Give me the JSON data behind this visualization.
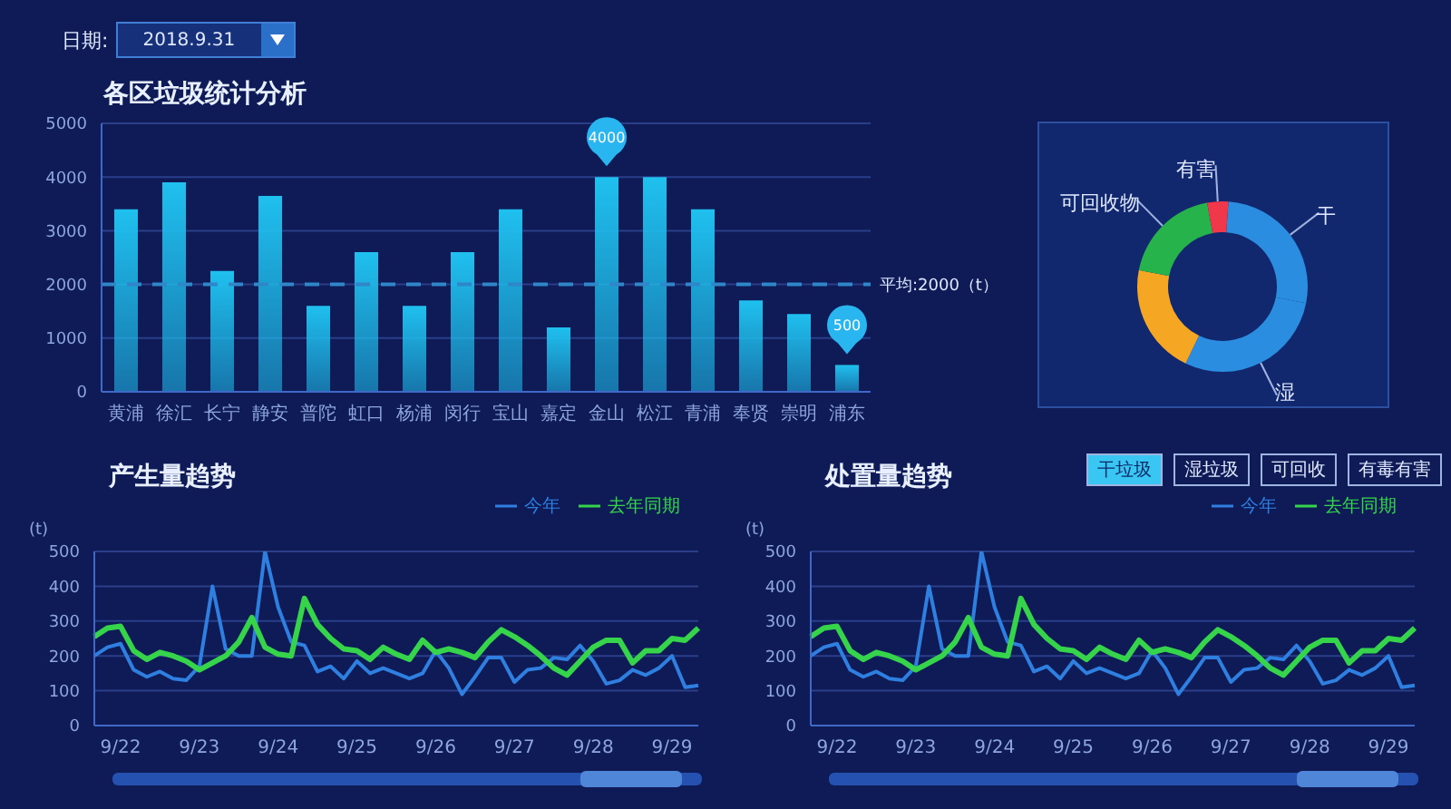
{
  "chart_data": [
    {
      "type": "bar",
      "title": "各区垃圾统计分析",
      "annotations": [
        "日期:",
        "2018.9.31"
      ],
      "categories": [
        "黄浦",
        "徐汇",
        "长宁",
        "静安",
        "普陀",
        "虹口",
        "杨浦",
        "闵行",
        "宝山",
        "嘉定",
        "金山",
        "松江",
        "青浦",
        "奉贤",
        "崇明",
        "浦东"
      ],
      "values": [
        3400,
        3900,
        2250,
        3650,
        1600,
        2600,
        1600,
        2600,
        3400,
        1200,
        4000,
        4000,
        3400,
        1700,
        1450,
        500
      ],
      "value_labels": [
        null,
        null,
        null,
        null,
        null,
        null,
        null,
        null,
        null,
        null,
        "4000",
        null,
        null,
        null,
        null,
        "500"
      ],
      "color": "#1fc0ef",
      "ylim": [
        0,
        5000
      ],
      "yticks": [
        0,
        1000,
        2000,
        3000,
        4000,
        5000
      ],
      "grid": "y",
      "ref_lines": [
        {
          "axis": "y",
          "value": 2000,
          "label": "平均:2000（t）",
          "color": "#2f86c8",
          "line_style": "dashed"
        }
      ]
    },
    {
      "type": "donut",
      "categories": [
        "干",
        "湿",
        null,
        "可回收物",
        "有害"
      ],
      "values": [
        27,
        29,
        21,
        19,
        4
      ],
      "colors": [
        "#2a8de0",
        "#2a8de0",
        "#f5a623",
        "#27b34b",
        "#f0384a"
      ]
    },
    {
      "type": "line",
      "title": "产生量趋势",
      "ylabel": "(t)",
      "categories": [
        null,
        null,
        "9/22",
        null,
        null,
        null,
        null,
        null,
        "9/23",
        null,
        null,
        null,
        null,
        null,
        "9/24",
        null,
        null,
        null,
        null,
        null,
        "9/25",
        null,
        null,
        null,
        null,
        null,
        "9/26",
        null,
        null,
        null,
        null,
        null,
        "9/27",
        null,
        null,
        null,
        null,
        null,
        "9/28",
        null,
        null,
        null,
        null,
        null,
        "9/29",
        null,
        null
      ],
      "series": [
        {
          "name": "今年",
          "color": "#2f7fe0",
          "values": [
            200,
            225,
            235,
            160,
            140,
            155,
            135,
            130,
            170,
            400,
            220,
            200,
            200,
            500,
            340,
            240,
            230,
            155,
            170,
            135,
            185,
            150,
            165,
            150,
            135,
            150,
            215,
            165,
            90,
            140,
            195,
            195,
            125,
            160,
            165,
            195,
            190,
            230,
            185,
            120,
            130,
            160,
            145,
            165,
            200,
            110,
            115
          ]
        },
        {
          "name": "去年同期",
          "color": "#35d44a",
          "values": [
            255,
            280,
            285,
            215,
            190,
            210,
            200,
            185,
            160,
            180,
            200,
            240,
            310,
            225,
            205,
            200,
            365,
            290,
            250,
            220,
            215,
            190,
            225,
            205,
            190,
            245,
            210,
            220,
            210,
            195,
            240,
            275,
            255,
            230,
            200,
            165,
            145,
            185,
            225,
            245,
            245,
            180,
            215,
            215,
            250,
            245,
            280
          ]
        }
      ],
      "ylim": [
        0,
        500
      ],
      "yticks": [
        0,
        100,
        200,
        300,
        400,
        500
      ],
      "grid": "y",
      "legend": "top right"
    },
    {
      "type": "line",
      "title": "处置量趋势",
      "ylabel": "(t)",
      "annotations": [
        "干垃圾",
        "湿垃圾",
        "可回收",
        "有毒有害"
      ],
      "categories": [
        null,
        null,
        "9/22",
        null,
        null,
        null,
        null,
        null,
        "9/23",
        null,
        null,
        null,
        null,
        null,
        "9/24",
        null,
        null,
        null,
        null,
        null,
        "9/25",
        null,
        null,
        null,
        null,
        null,
        "9/26",
        null,
        null,
        null,
        null,
        null,
        "9/27",
        null,
        null,
        null,
        null,
        null,
        "9/28",
        null,
        null,
        null,
        null,
        null,
        "9/29",
        null,
        null
      ],
      "series": [
        {
          "name": "今年",
          "color": "#2f7fe0",
          "values": [
            200,
            225,
            235,
            160,
            140,
            155,
            135,
            130,
            170,
            400,
            220,
            200,
            200,
            500,
            340,
            240,
            230,
            155,
            170,
            135,
            185,
            150,
            165,
            150,
            135,
            150,
            215,
            165,
            90,
            140,
            195,
            195,
            125,
            160,
            165,
            195,
            190,
            230,
            185,
            120,
            130,
            160,
            145,
            165,
            200,
            110,
            115
          ]
        },
        {
          "name": "去年同期",
          "color": "#35d44a",
          "values": [
            255,
            280,
            285,
            215,
            190,
            210,
            200,
            185,
            160,
            180,
            200,
            240,
            310,
            225,
            205,
            200,
            365,
            290,
            250,
            220,
            215,
            190,
            225,
            205,
            190,
            245,
            210,
            220,
            210,
            195,
            240,
            275,
            255,
            230,
            200,
            165,
            145,
            185,
            225,
            245,
            245,
            180,
            215,
            215,
            250,
            245,
            280
          ]
        }
      ],
      "ylim": [
        0,
        500
      ],
      "yticks": [
        0,
        100,
        200,
        300,
        400,
        500
      ],
      "grid": "y",
      "legend": "top right"
    }
  ]
}
